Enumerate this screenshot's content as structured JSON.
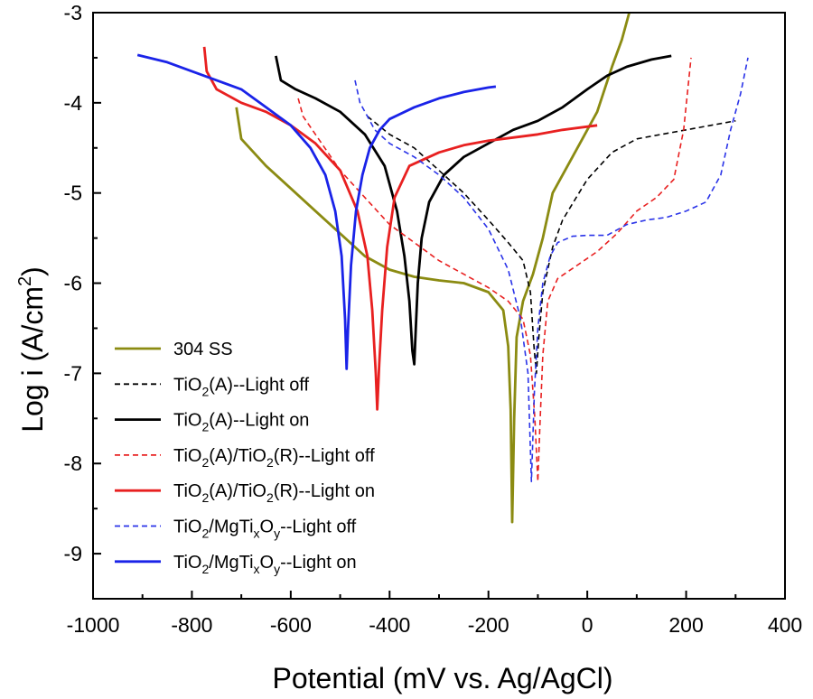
{
  "chart_data": {
    "type": "line",
    "title": "",
    "xlabel": "Potential (mV vs. Ag/AgCl)",
    "ylabel_main": "Log i (A/cm",
    "ylabel_sup": "2",
    "ylabel_close": ")",
    "xlim": [
      -1000,
      400
    ],
    "ylim": [
      -9.5,
      -3
    ],
    "xticks": [
      -1000,
      -800,
      -600,
      -400,
      -200,
      0,
      200,
      400
    ],
    "yticks": [
      -9,
      -8,
      -7,
      -6,
      -5,
      -4,
      -3
    ],
    "xtick_labels": [
      "-1000",
      "-800",
      "-600",
      "-400",
      "-200",
      "0",
      "200",
      "400"
    ],
    "ytick_labels": [
      "-9",
      "-8",
      "-7",
      "-6",
      "-5",
      "-4",
      "-3"
    ],
    "grid": false,
    "legend_position": "bottom-left",
    "series": [
      {
        "name": "304 SS",
        "legend_parts": [
          {
            "t": "304 SS"
          }
        ],
        "color": "#8b8b12",
        "dash": "solid",
        "points": [
          [
            -710,
            -4.05
          ],
          [
            -700,
            -4.4
          ],
          [
            -650,
            -4.7
          ],
          [
            -600,
            -4.95
          ],
          [
            -550,
            -5.2
          ],
          [
            -500,
            -5.45
          ],
          [
            -450,
            -5.7
          ],
          [
            -400,
            -5.85
          ],
          [
            -350,
            -5.93
          ],
          [
            -300,
            -5.97
          ],
          [
            -250,
            -6.0
          ],
          [
            -200,
            -6.1
          ],
          [
            -170,
            -6.3
          ],
          [
            -160,
            -6.7
          ],
          [
            -155,
            -7.4
          ],
          [
            -152,
            -8.65
          ],
          [
            -148,
            -7.5
          ],
          [
            -143,
            -6.6
          ],
          [
            -130,
            -6.2
          ],
          [
            -110,
            -5.9
          ],
          [
            -90,
            -5.5
          ],
          [
            -70,
            -5.0
          ],
          [
            -40,
            -4.7
          ],
          [
            -10,
            -4.4
          ],
          [
            20,
            -4.1
          ],
          [
            50,
            -3.6
          ],
          [
            70,
            -3.3
          ],
          [
            85,
            -3.0
          ]
        ]
      },
      {
        "name": "TiO2(A)--Light off",
        "legend_parts": [
          {
            "t": "TiO"
          },
          {
            "sub": "2"
          },
          {
            "t": "(A)--Light off"
          }
        ],
        "color": "#000000",
        "dash": "dashed",
        "points": [
          [
            -445,
            -4.15
          ],
          [
            -400,
            -4.35
          ],
          [
            -350,
            -4.5
          ],
          [
            -300,
            -4.75
          ],
          [
            -250,
            -5.0
          ],
          [
            -200,
            -5.3
          ],
          [
            -160,
            -5.55
          ],
          [
            -130,
            -5.75
          ],
          [
            -115,
            -6.1
          ],
          [
            -108,
            -6.7
          ],
          [
            -103,
            -7.0
          ],
          [
            -98,
            -6.6
          ],
          [
            -90,
            -6.1
          ],
          [
            -70,
            -5.6
          ],
          [
            -50,
            -5.3
          ],
          [
            0,
            -4.85
          ],
          [
            50,
            -4.55
          ],
          [
            100,
            -4.4
          ],
          [
            150,
            -4.35
          ],
          [
            200,
            -4.3
          ],
          [
            250,
            -4.25
          ],
          [
            300,
            -4.2
          ]
        ]
      },
      {
        "name": "TiO2(A)--Light on",
        "legend_parts": [
          {
            "t": "TiO"
          },
          {
            "sub": "2"
          },
          {
            "t": "(A)--Light on"
          }
        ],
        "color": "#000000",
        "dash": "solid",
        "points": [
          [
            -630,
            -3.48
          ],
          [
            -620,
            -3.75
          ],
          [
            -590,
            -3.85
          ],
          [
            -550,
            -3.95
          ],
          [
            -500,
            -4.1
          ],
          [
            -450,
            -4.35
          ],
          [
            -410,
            -4.7
          ],
          [
            -385,
            -5.2
          ],
          [
            -370,
            -5.7
          ],
          [
            -360,
            -6.2
          ],
          [
            -354,
            -6.75
          ],
          [
            -350,
            -6.9
          ],
          [
            -347,
            -6.5
          ],
          [
            -343,
            -6.0
          ],
          [
            -335,
            -5.5
          ],
          [
            -320,
            -5.1
          ],
          [
            -290,
            -4.8
          ],
          [
            -250,
            -4.6
          ],
          [
            -200,
            -4.45
          ],
          [
            -150,
            -4.3
          ],
          [
            -100,
            -4.2
          ],
          [
            -50,
            -4.05
          ],
          [
            0,
            -3.85
          ],
          [
            40,
            -3.7
          ],
          [
            80,
            -3.6
          ],
          [
            130,
            -3.52
          ],
          [
            170,
            -3.48
          ]
        ]
      },
      {
        "name": "TiO2(A)/TiO2(R)--Light off",
        "legend_parts": [
          {
            "t": "TiO"
          },
          {
            "sub": "2"
          },
          {
            "t": "(A)/TiO"
          },
          {
            "sub": "2"
          },
          {
            "t": "(R)--Light off"
          }
        ],
        "color": "#e82020",
        "dash": "dashed",
        "points": [
          [
            -585,
            -3.95
          ],
          [
            -575,
            -4.15
          ],
          [
            -550,
            -4.35
          ],
          [
            -500,
            -4.75
          ],
          [
            -450,
            -5.05
          ],
          [
            -400,
            -5.35
          ],
          [
            -350,
            -5.55
          ],
          [
            -300,
            -5.75
          ],
          [
            -250,
            -5.9
          ],
          [
            -200,
            -6.05
          ],
          [
            -160,
            -6.2
          ],
          [
            -130,
            -6.4
          ],
          [
            -115,
            -6.8
          ],
          [
            -106,
            -7.5
          ],
          [
            -100,
            -8.2
          ],
          [
            -96,
            -7.6
          ],
          [
            -90,
            -6.8
          ],
          [
            -80,
            -6.2
          ],
          [
            -60,
            -5.95
          ],
          [
            -20,
            -5.8
          ],
          [
            20,
            -5.65
          ],
          [
            60,
            -5.45
          ],
          [
            100,
            -5.2
          ],
          [
            140,
            -5.05
          ],
          [
            175,
            -4.85
          ],
          [
            195,
            -4.3
          ],
          [
            210,
            -3.5
          ]
        ]
      },
      {
        "name": "TiO2(A)/TiO2(R)--Light on",
        "legend_parts": [
          {
            "t": "TiO"
          },
          {
            "sub": "2"
          },
          {
            "t": "(A)/TiO"
          },
          {
            "sub": "2"
          },
          {
            "t": "(R)--Light on"
          }
        ],
        "color": "#e82020",
        "dash": "solid",
        "points": [
          [
            -775,
            -3.38
          ],
          [
            -770,
            -3.65
          ],
          [
            -750,
            -3.85
          ],
          [
            -700,
            -4.0
          ],
          [
            -650,
            -4.1
          ],
          [
            -600,
            -4.25
          ],
          [
            -550,
            -4.45
          ],
          [
            -500,
            -4.75
          ],
          [
            -465,
            -5.2
          ],
          [
            -445,
            -5.7
          ],
          [
            -435,
            -6.3
          ],
          [
            -428,
            -7.0
          ],
          [
            -425,
            -7.4
          ],
          [
            -421,
            -6.9
          ],
          [
            -415,
            -6.3
          ],
          [
            -405,
            -5.6
          ],
          [
            -390,
            -5.05
          ],
          [
            -360,
            -4.7
          ],
          [
            -300,
            -4.55
          ],
          [
            -250,
            -4.47
          ],
          [
            -200,
            -4.42
          ],
          [
            -100,
            -4.35
          ],
          [
            -50,
            -4.3
          ],
          [
            20,
            -4.25
          ]
        ]
      },
      {
        "name": "TiO2/MgTixOy--Light off",
        "legend_parts": [
          {
            "t": "TiO"
          },
          {
            "sub": "2"
          },
          {
            "t": "/MgTi"
          },
          {
            "sub": "x"
          },
          {
            "t": "O"
          },
          {
            "sub": "y"
          },
          {
            "t": "--Light off"
          }
        ],
        "color": "#2a33e8",
        "dash": "dashed",
        "points": [
          [
            -470,
            -3.75
          ],
          [
            -460,
            -4.0
          ],
          [
            -430,
            -4.3
          ],
          [
            -400,
            -4.45
          ],
          [
            -350,
            -4.6
          ],
          [
            -300,
            -4.8
          ],
          [
            -250,
            -5.05
          ],
          [
            -200,
            -5.4
          ],
          [
            -160,
            -5.85
          ],
          [
            -135,
            -6.4
          ],
          [
            -120,
            -7.0
          ],
          [
            -113,
            -8.2
          ],
          [
            -107,
            -7.2
          ],
          [
            -100,
            -6.5
          ],
          [
            -90,
            -6.0
          ],
          [
            -75,
            -5.7
          ],
          [
            -60,
            -5.55
          ],
          [
            -30,
            -5.48
          ],
          [
            0,
            -5.47
          ],
          [
            40,
            -5.47
          ],
          [
            80,
            -5.35
          ],
          [
            120,
            -5.3
          ],
          [
            160,
            -5.27
          ],
          [
            200,
            -5.2
          ],
          [
            240,
            -5.1
          ],
          [
            270,
            -4.8
          ],
          [
            290,
            -4.3
          ],
          [
            310,
            -3.9
          ],
          [
            325,
            -3.5
          ]
        ]
      },
      {
        "name": "TiO2/MgTixOy--Light on",
        "legend_parts": [
          {
            "t": "TiO"
          },
          {
            "sub": "2"
          },
          {
            "t": "/MgTi"
          },
          {
            "sub": "x"
          },
          {
            "t": "O"
          },
          {
            "sub": "y"
          },
          {
            "t": "--Light on"
          }
        ],
        "color": "#1a23e8",
        "dash": "solid",
        "points": [
          [
            -910,
            -3.47
          ],
          [
            -850,
            -3.55
          ],
          [
            -800,
            -3.65
          ],
          [
            -750,
            -3.75
          ],
          [
            -700,
            -3.85
          ],
          [
            -650,
            -4.05
          ],
          [
            -600,
            -4.25
          ],
          [
            -560,
            -4.5
          ],
          [
            -530,
            -4.8
          ],
          [
            -510,
            -5.2
          ],
          [
            -497,
            -5.7
          ],
          [
            -490,
            -6.4
          ],
          [
            -487,
            -6.95
          ],
          [
            -484,
            -6.5
          ],
          [
            -478,
            -5.8
          ],
          [
            -468,
            -5.2
          ],
          [
            -455,
            -4.8
          ],
          [
            -440,
            -4.5
          ],
          [
            -420,
            -4.3
          ],
          [
            -400,
            -4.18
          ],
          [
            -350,
            -4.05
          ],
          [
            -300,
            -3.95
          ],
          [
            -250,
            -3.88
          ],
          [
            -200,
            -3.83
          ],
          [
            -185,
            -3.82
          ]
        ]
      }
    ]
  }
}
